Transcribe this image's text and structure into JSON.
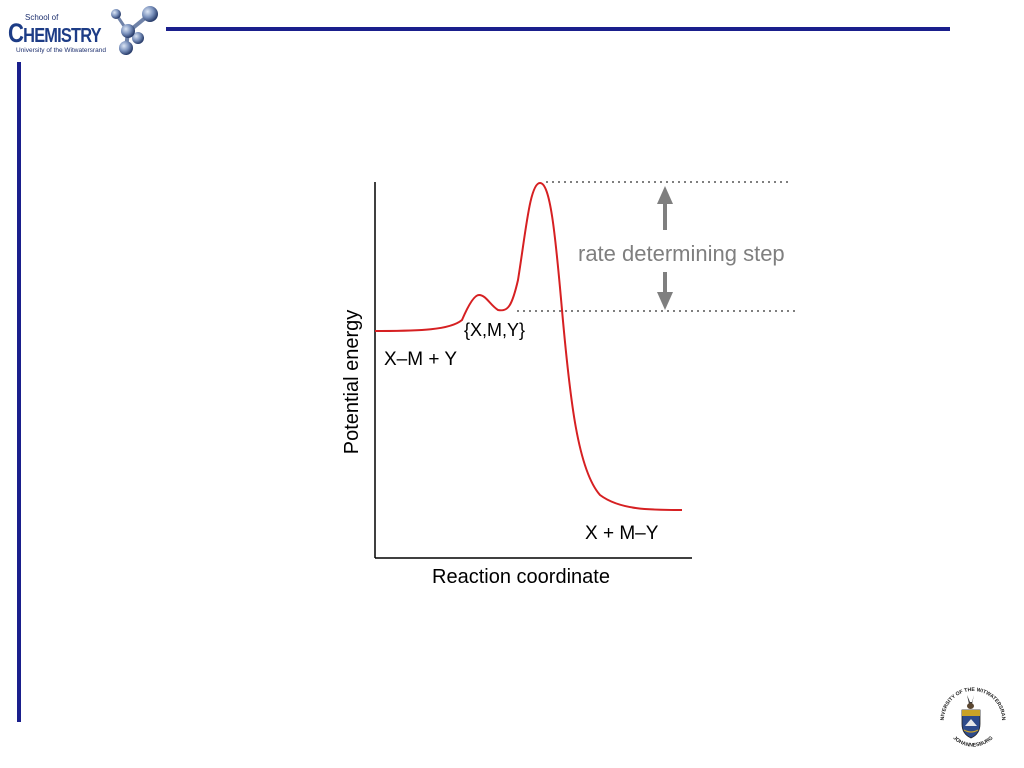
{
  "header": {
    "logo": {
      "line1": "School of",
      "word_initial": "C",
      "word_rest": "HEMISTRY",
      "line3": "University of the Witwatersrand"
    }
  },
  "diagram": {
    "axes": {
      "ylabel": "Potential energy",
      "xlabel": "Reaction coordinate"
    },
    "curve_color": "#d62022",
    "labels": {
      "reactants": "X–M + Y",
      "intermediate": "{X,M,Y}",
      "products": "X + M–Y"
    },
    "annotation": {
      "text": "rate determining step",
      "color": "#7f7f7f"
    }
  },
  "footer": {
    "crest": {
      "ring_text_top": "UNIVERSITY OF THE WITWATERSRAND",
      "ring_text_bottom": "JOHANNESBURG"
    }
  }
}
